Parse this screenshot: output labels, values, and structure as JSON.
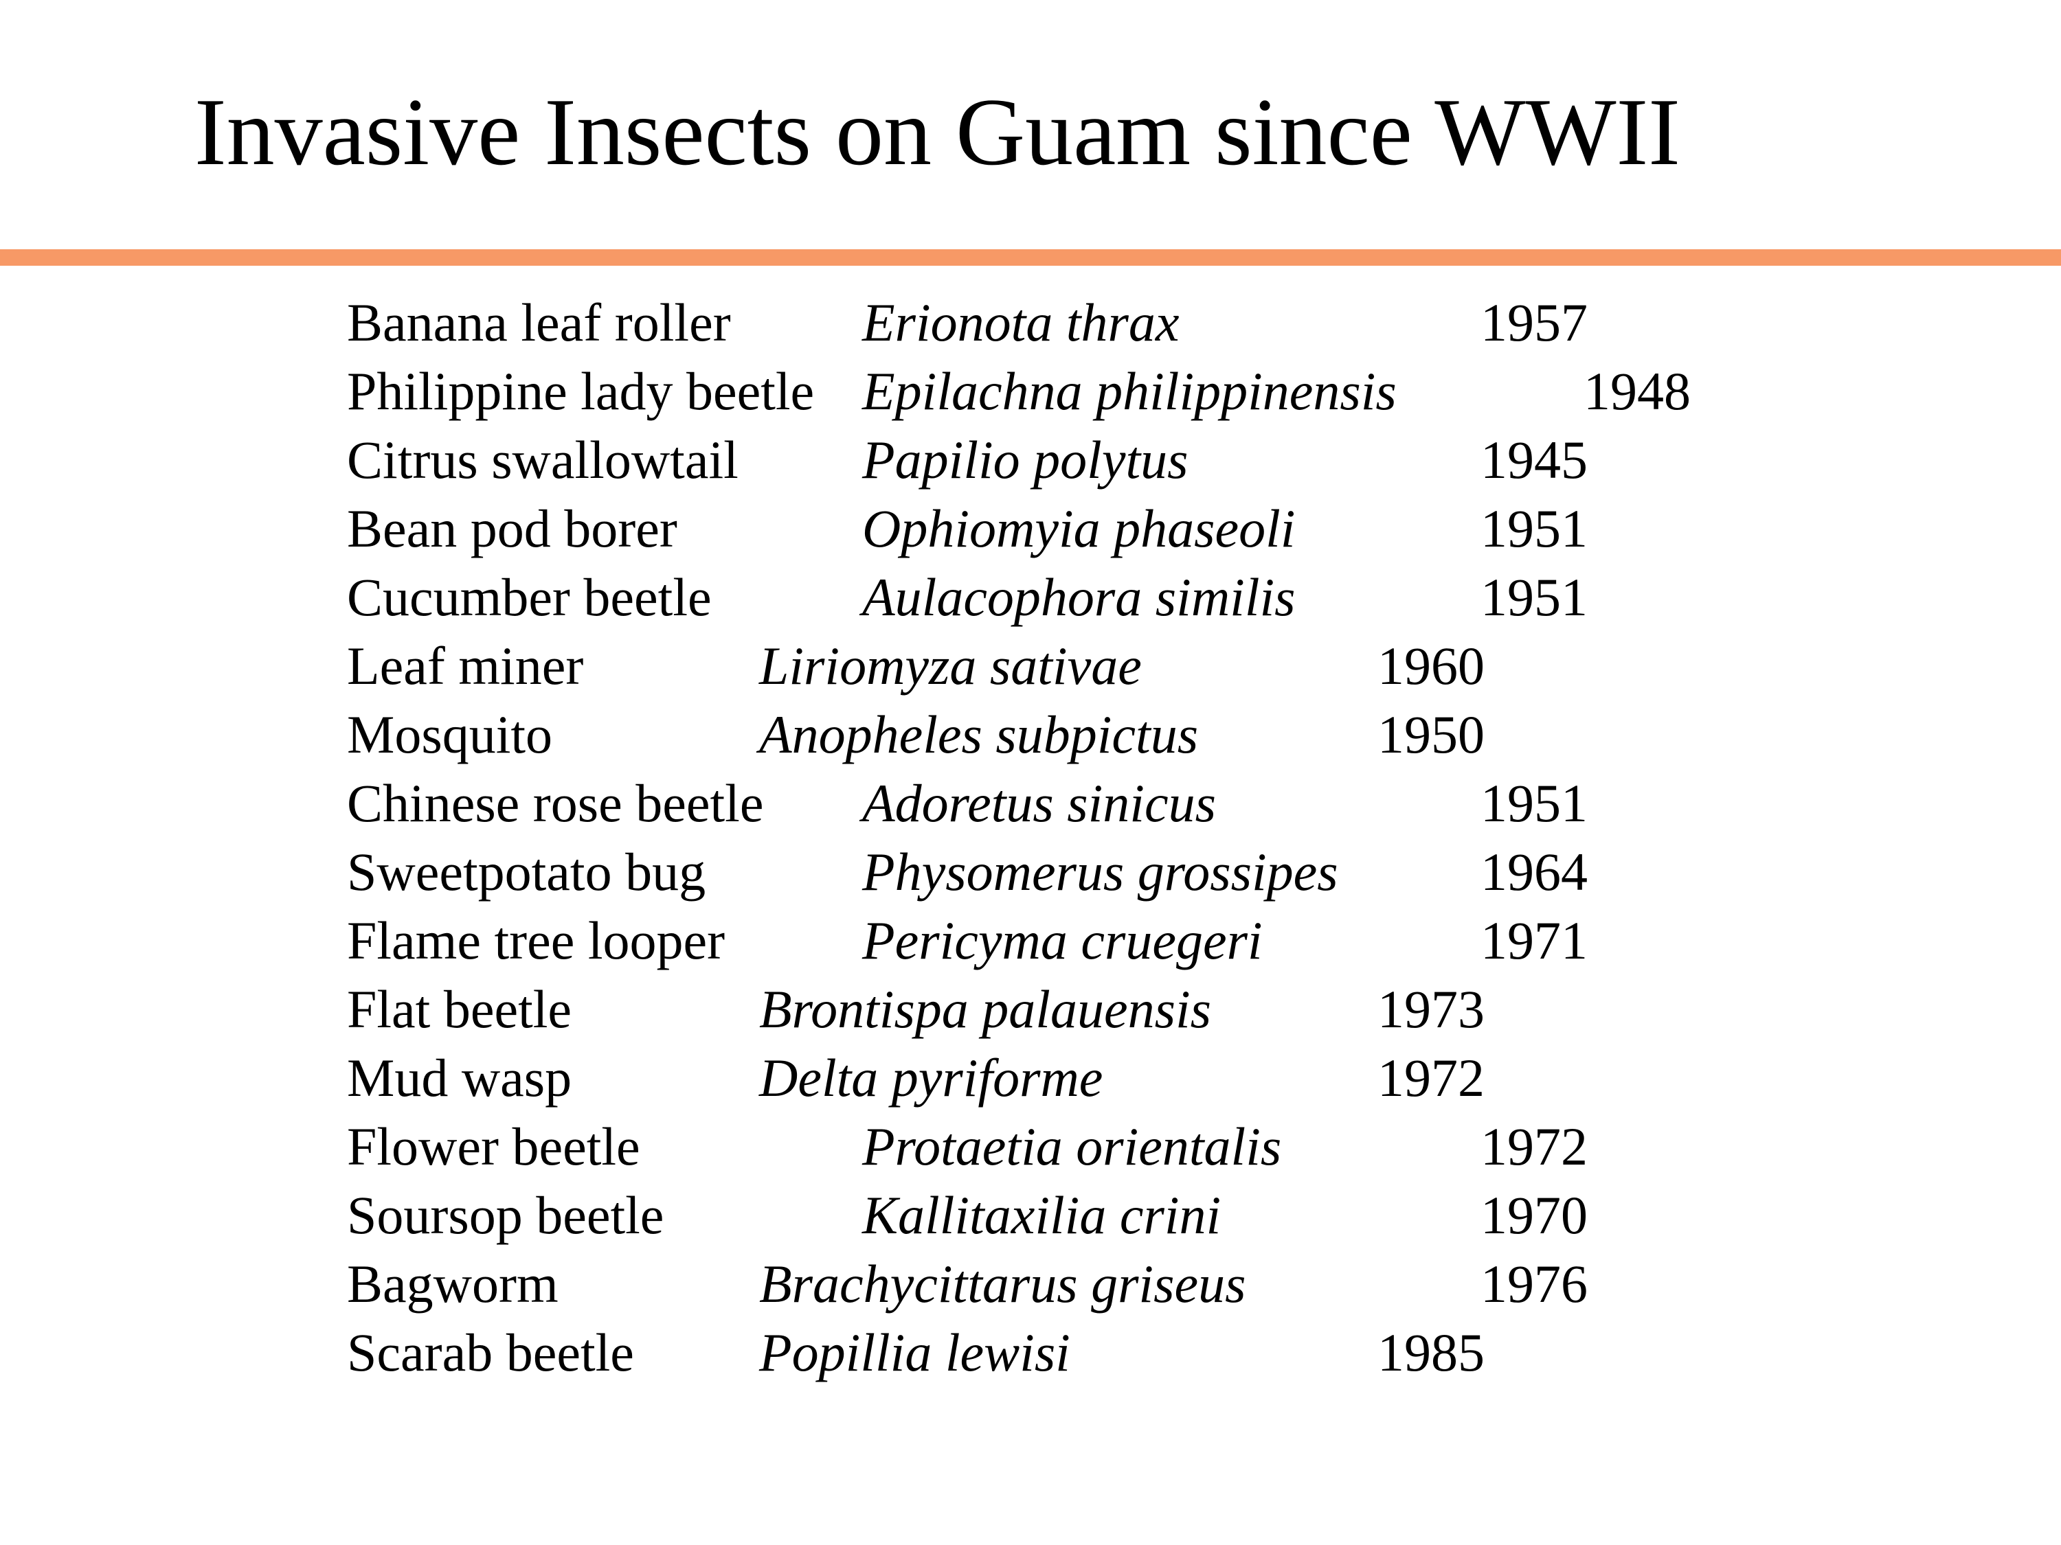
{
  "title": "Invasive Insects on Guam since WWII",
  "colors": {
    "accent_rule": "#f79966",
    "text": "#000000",
    "background": "#ffffff"
  },
  "rows": [
    {
      "common": "Banana leaf roller",
      "scientific": "Erionota thrax",
      "year": "1957"
    },
    {
      "common": "Philippine lady beetle",
      "scientific": "Epilachna philippinensis",
      "year": "1948"
    },
    {
      "common": "Citrus swallowtail",
      "scientific": "Papilio polytus",
      "year": "1945"
    },
    {
      "common": "Bean pod borer",
      "scientific": "Ophiomyia phaseoli",
      "year": "1951"
    },
    {
      "common": "Cucumber beetle",
      "scientific": "Aulacophora similis",
      "year": "1951"
    },
    {
      "common": "Leaf miner",
      "scientific": "Liriomyza sativae",
      "year": "1960"
    },
    {
      "common": "Mosquito",
      "scientific": "Anopheles subpictus",
      "year": "1950"
    },
    {
      "common": "Chinese rose beetle",
      "scientific": "Adoretus sinicus",
      "year": "1951"
    },
    {
      "common": "Sweetpotato bug",
      "scientific": "Physomerus grossipes",
      "year": "1964"
    },
    {
      "common": "Flame tree looper",
      "scientific": "Pericyma cruegeri",
      "year": "1971"
    },
    {
      "common": "Flat beetle",
      "scientific": "Brontispa palauensis",
      "year": "1973"
    },
    {
      "common": "Mud wasp",
      "scientific": "Delta pyriforme",
      "year": "1972"
    },
    {
      "common": "Flower beetle",
      "scientific": "Protaetia orientalis",
      "year": "1972"
    },
    {
      "common": "Soursop beetle",
      "scientific": "Kallitaxilia crini",
      "year": "1970"
    },
    {
      "common": "Bagworm",
      "scientific": "Brachycittarus griseus",
      "year": "1976"
    },
    {
      "common": "Scarab beetle",
      "scientific": "Popillia lewisi",
      "year": "1985"
    }
  ]
}
